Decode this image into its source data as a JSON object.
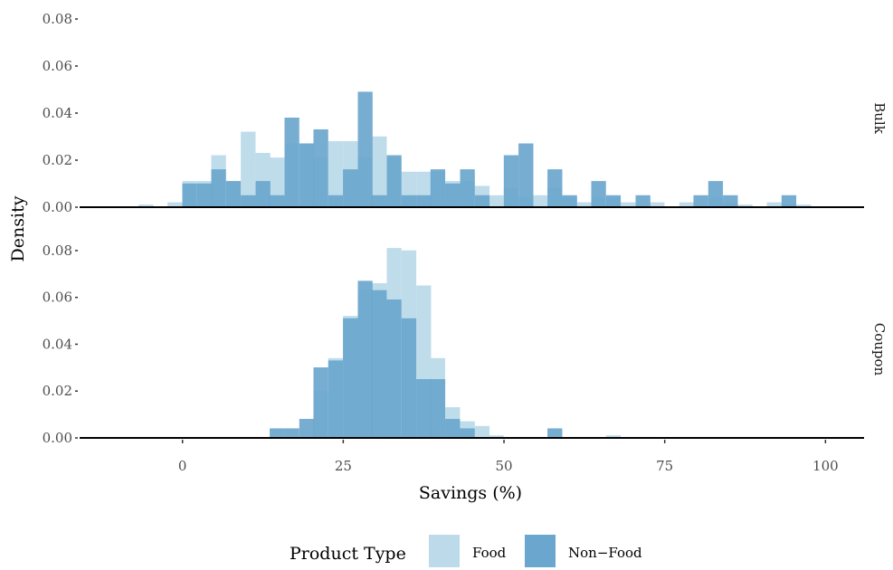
{
  "chart_data": {
    "type": "bar",
    "subtype": "faceted-overlaid-histogram",
    "xlabel": "Savings (%)",
    "ylabel": "Density",
    "x_ticks": [
      0,
      25,
      50,
      75,
      100
    ],
    "y_ticks": [
      0.0,
      0.02,
      0.04,
      0.06,
      0.08
    ],
    "xlim": [
      -16,
      106
    ],
    "ylim": [
      0,
      0.085
    ],
    "bin_width": 2.27,
    "grid": false,
    "legend": {
      "title": "Product Type",
      "position": "bottom",
      "entries": [
        {
          "name": "Food",
          "color": "#bcdaea"
        },
        {
          "name": "Non−Food",
          "color": "#6aa6cd"
        }
      ]
    },
    "facets": [
      {
        "name": "Bulk",
        "series": [
          {
            "name": "Food",
            "bins": [
              [
                -6.8,
                0.001
              ],
              [
                -2.3,
                0.002
              ],
              [
                0.0,
                0.011
              ],
              [
                2.3,
                0.011
              ],
              [
                4.5,
                0.022
              ],
              [
                6.8,
                0.011
              ],
              [
                9.1,
                0.032
              ],
              [
                11.4,
                0.023
              ],
              [
                13.6,
                0.021
              ],
              [
                15.9,
                0.027
              ],
              [
                18.2,
                0.027
              ],
              [
                20.4,
                0.021
              ],
              [
                22.7,
                0.028
              ],
              [
                25.0,
                0.028
              ],
              [
                27.3,
                0.021
              ],
              [
                29.5,
                0.03
              ],
              [
                31.8,
                0.021
              ],
              [
                34.1,
                0.015
              ],
              [
                36.4,
                0.015
              ],
              [
                38.6,
                0.015
              ],
              [
                40.9,
                0.011
              ],
              [
                43.2,
                0.011
              ],
              [
                45.5,
                0.009
              ],
              [
                47.7,
                0.005
              ],
              [
                50.0,
                0.008
              ],
              [
                52.3,
                0.004
              ],
              [
                54.5,
                0.005
              ],
              [
                56.8,
                0.008
              ],
              [
                59.1,
                0.004
              ],
              [
                61.4,
                0.002
              ],
              [
                63.6,
                0.004
              ],
              [
                65.9,
                0.004
              ],
              [
                68.2,
                0.002
              ],
              [
                72.7,
                0.002
              ],
              [
                77.3,
                0.002
              ],
              [
                81.8,
                0.004
              ],
              [
                84.1,
                0.002
              ],
              [
                86.4,
                0.001
              ],
              [
                90.9,
                0.002
              ],
              [
                93.2,
                0.001
              ],
              [
                95.5,
                0.001
              ]
            ]
          },
          {
            "name": "Non−Food",
            "bins": [
              [
                0.0,
                0.01
              ],
              [
                2.3,
                0.01
              ],
              [
                4.5,
                0.016
              ],
              [
                6.8,
                0.011
              ],
              [
                9.1,
                0.005
              ],
              [
                11.4,
                0.011
              ],
              [
                13.6,
                0.005
              ],
              [
                15.9,
                0.038
              ],
              [
                18.2,
                0.027
              ],
              [
                20.4,
                0.033
              ],
              [
                22.7,
                0.005
              ],
              [
                25.0,
                0.016
              ],
              [
                27.3,
                0.049
              ],
              [
                29.5,
                0.005
              ],
              [
                31.8,
                0.022
              ],
              [
                34.1,
                0.005
              ],
              [
                36.4,
                0.005
              ],
              [
                38.6,
                0.016
              ],
              [
                40.9,
                0.01
              ],
              [
                43.2,
                0.016
              ],
              [
                45.5,
                0.005
              ],
              [
                50.0,
                0.022
              ],
              [
                52.3,
                0.027
              ],
              [
                56.8,
                0.016
              ],
              [
                59.1,
                0.005
              ],
              [
                63.6,
                0.011
              ],
              [
                65.9,
                0.005
              ],
              [
                70.5,
                0.005
              ],
              [
                79.5,
                0.005
              ],
              [
                81.8,
                0.011
              ],
              [
                84.1,
                0.005
              ],
              [
                93.2,
                0.005
              ]
            ]
          }
        ]
      },
      {
        "name": "Coupon",
        "series": [
          {
            "name": "Food",
            "bins": [
              [
                20.4,
                0.02
              ],
              [
                22.7,
                0.034
              ],
              [
                25.0,
                0.052
              ],
              [
                27.3,
                0.063
              ],
              [
                29.5,
                0.066
              ],
              [
                31.8,
                0.081
              ],
              [
                34.1,
                0.08
              ],
              [
                36.4,
                0.065
              ],
              [
                38.6,
                0.034
              ],
              [
                40.9,
                0.013
              ],
              [
                43.2,
                0.007
              ],
              [
                45.5,
                0.005
              ],
              [
                47.7,
                0.001
              ],
              [
                65.9,
                0.001
              ]
            ]
          },
          {
            "name": "Non−Food",
            "bins": [
              [
                13.6,
                0.004
              ],
              [
                15.9,
                0.004
              ],
              [
                18.2,
                0.008
              ],
              [
                20.4,
                0.03
              ],
              [
                22.7,
                0.033
              ],
              [
                25.0,
                0.051
              ],
              [
                27.3,
                0.067
              ],
              [
                29.5,
                0.063
              ],
              [
                31.8,
                0.059
              ],
              [
                34.1,
                0.051
              ],
              [
                36.4,
                0.025
              ],
              [
                38.6,
                0.025
              ],
              [
                40.9,
                0.008
              ],
              [
                43.2,
                0.004
              ],
              [
                56.8,
                0.004
              ]
            ]
          }
        ]
      }
    ]
  }
}
